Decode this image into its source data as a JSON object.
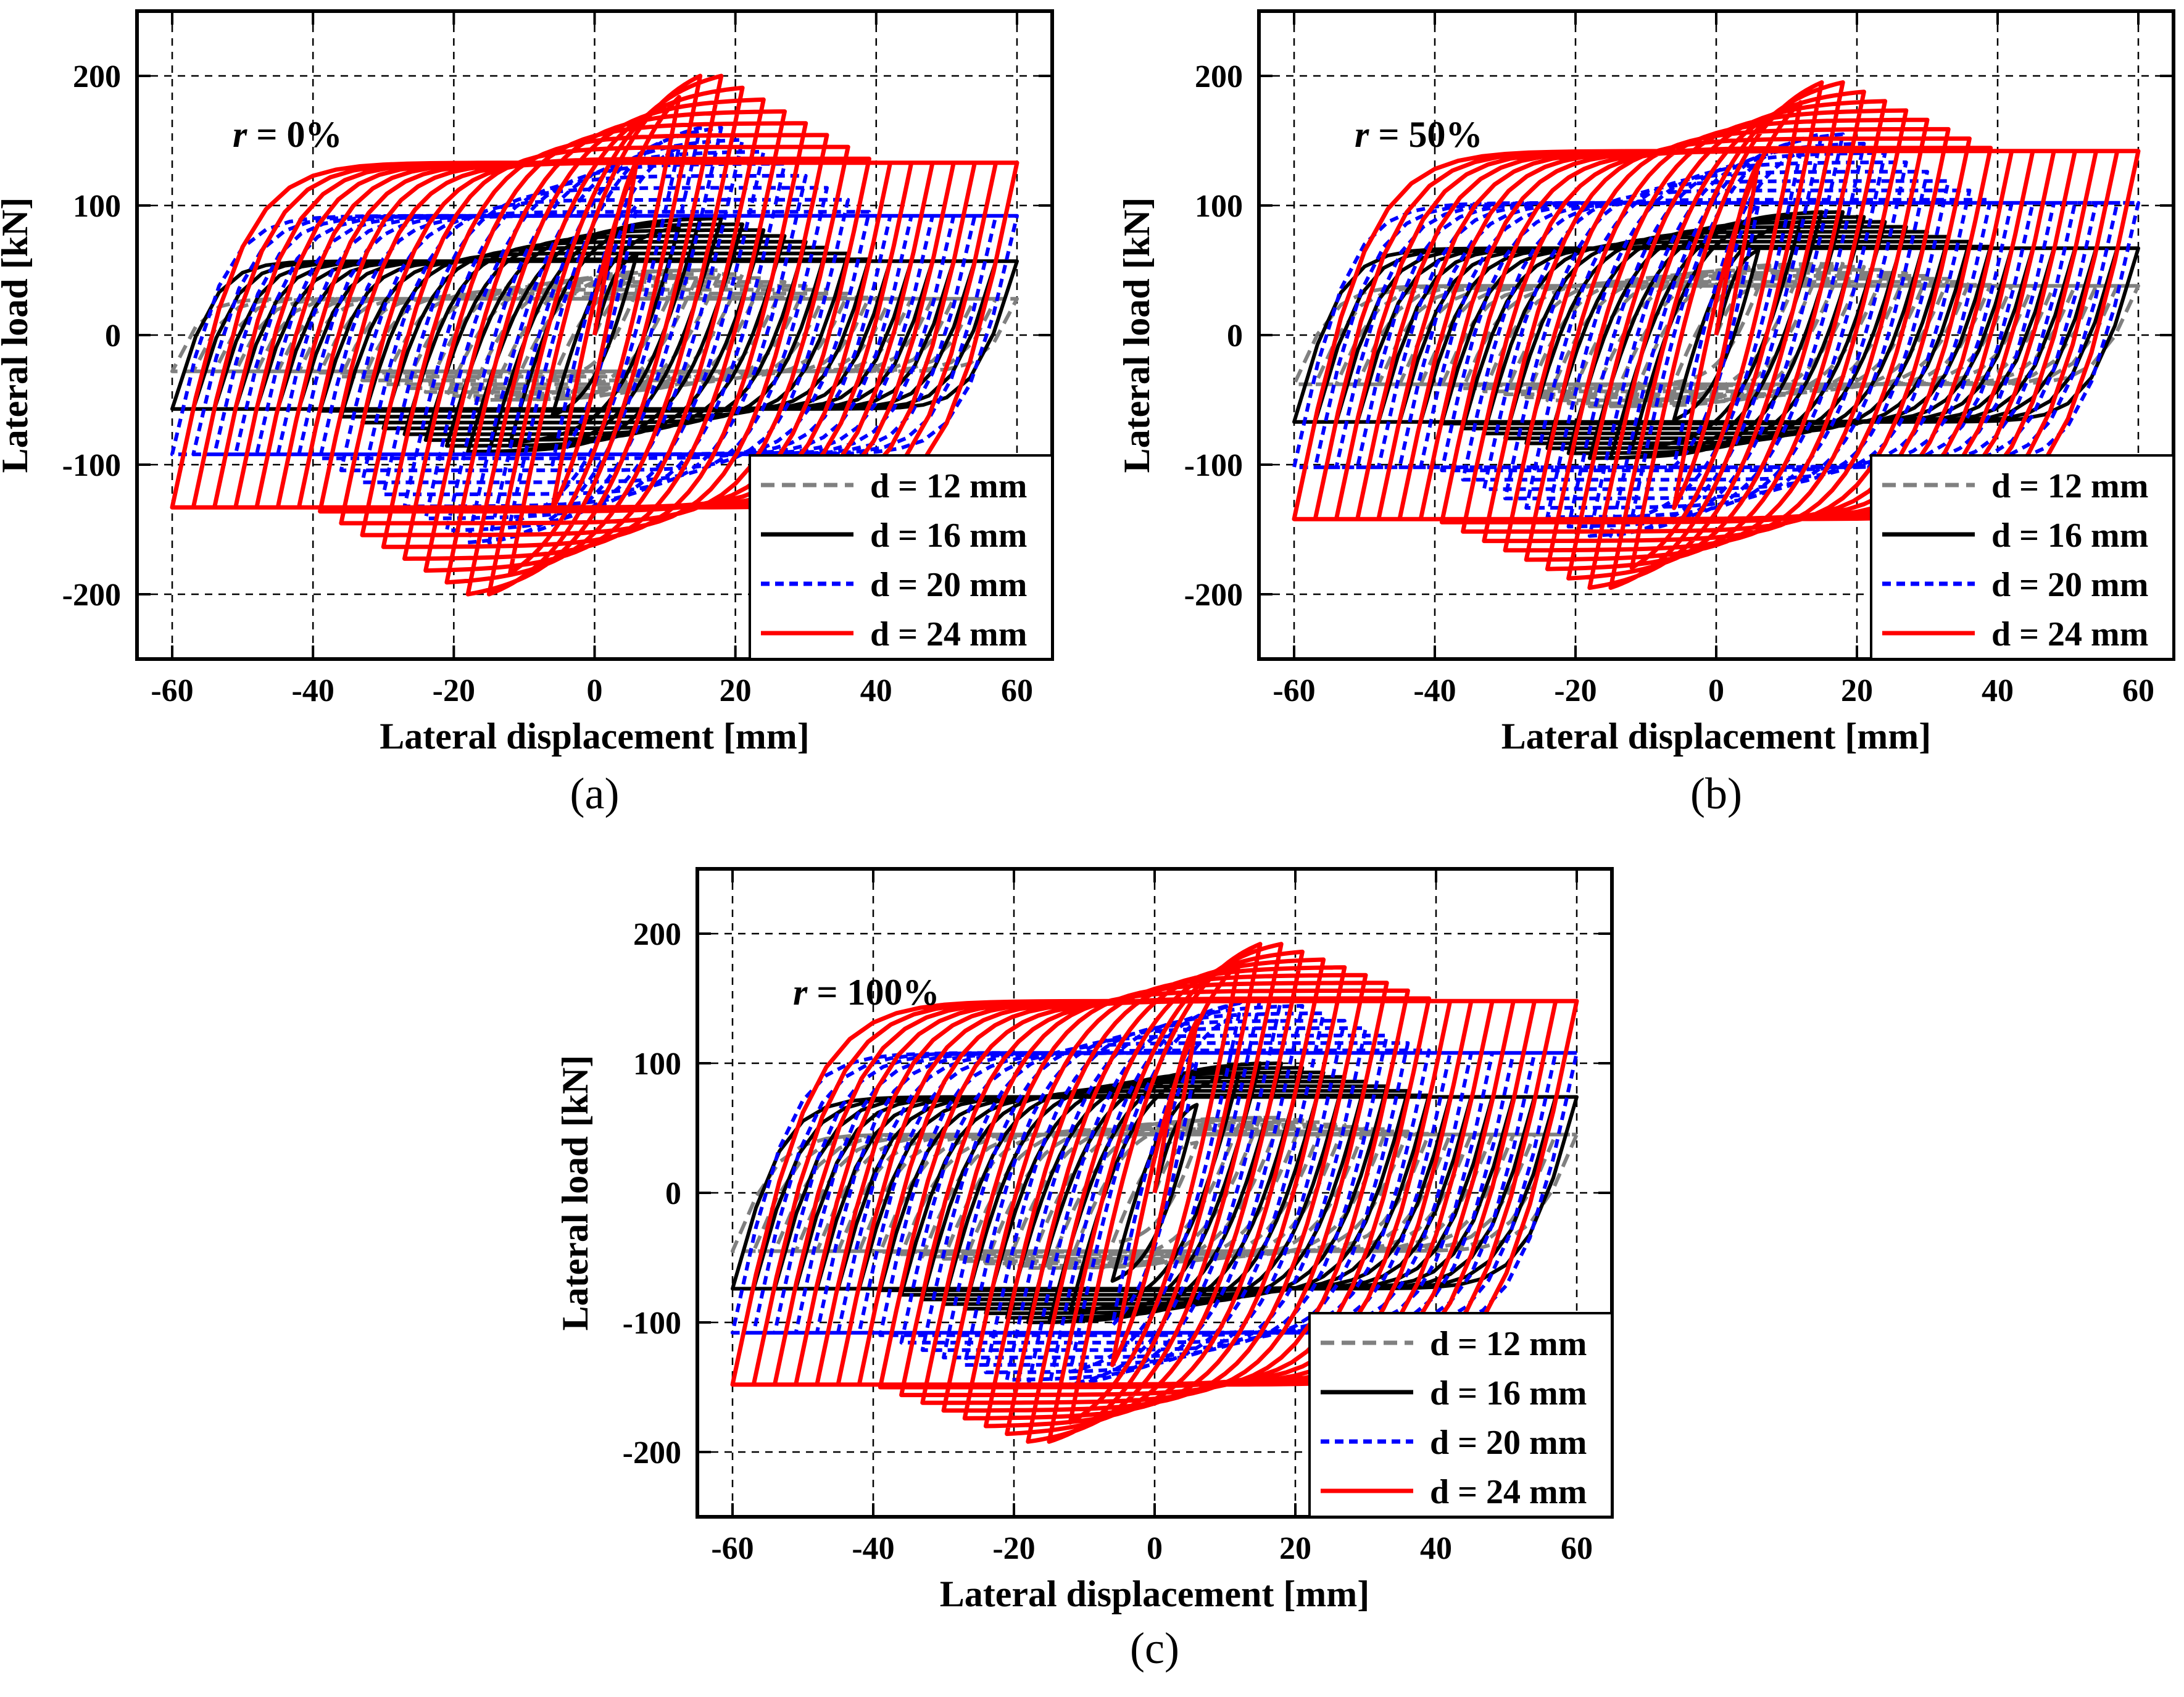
{
  "chart_data": [
    {
      "id": "a",
      "type": "line",
      "caption": "(a)",
      "annotation_var": "r",
      "annotation_value": " = 0%",
      "r_percent": 0,
      "xlabel": "Lateral displacement [mm]",
      "ylabel": "Lateral load [kN]",
      "xlim": [
        -65,
        65
      ],
      "ylim": [
        -250,
        250
      ],
      "xticks": [
        -60,
        -40,
        -20,
        0,
        20,
        40,
        60
      ],
      "yticks": [
        -200,
        -100,
        0,
        100,
        200
      ],
      "grid": true,
      "legend_position": "bottom-right",
      "series": [
        {
          "name": "d = 12 mm",
          "color": "#808080",
          "dash": "dashed",
          "peak_load": 50,
          "yield_load": 30,
          "yield_disp": 2.5,
          "end_load": 28
        },
        {
          "name": "d = 16 mm",
          "color": "#000000",
          "dash": "solid",
          "peak_load": 90,
          "yield_load": 55,
          "yield_disp": 3.0,
          "end_load": 57
        },
        {
          "name": "d = 20 mm",
          "color": "#0000ff",
          "dash": "dashed",
          "peak_load": 160,
          "yield_load": 85,
          "yield_disp": 3.5,
          "end_load": 92
        },
        {
          "name": "d = 24 mm",
          "color": "#ff0000",
          "dash": "solid",
          "peak_load": 200,
          "yield_load": 118,
          "yield_disp": 4.5,
          "end_load": 133
        }
      ]
    },
    {
      "id": "b",
      "type": "line",
      "caption": "(b)",
      "annotation_var": "r",
      "annotation_value": " = 50%",
      "r_percent": 50,
      "xlabel": "Lateral displacement [mm]",
      "ylabel": "Lateral load [kN]",
      "xlim": [
        -65,
        65
      ],
      "ylim": [
        -250,
        250
      ],
      "xticks": [
        -60,
        -40,
        -20,
        0,
        20,
        40,
        60
      ],
      "yticks": [
        -200,
        -100,
        0,
        100,
        200
      ],
      "grid": true,
      "legend_position": "bottom-right",
      "series": [
        {
          "name": "d = 12 mm",
          "color": "#808080",
          "dash": "dashed",
          "peak_load": 55,
          "yield_load": 32,
          "yield_disp": 2.5,
          "end_load": 38
        },
        {
          "name": "d = 16 mm",
          "color": "#000000",
          "dash": "solid",
          "peak_load": 95,
          "yield_load": 58,
          "yield_disp": 3.0,
          "end_load": 67
        },
        {
          "name": "d = 20 mm",
          "color": "#0000ff",
          "dash": "dashed",
          "peak_load": 155,
          "yield_load": 88,
          "yield_disp": 3.5,
          "end_load": 102
        },
        {
          "name": "d = 24 mm",
          "color": "#ff0000",
          "dash": "solid",
          "peak_load": 195,
          "yield_load": 118,
          "yield_disp": 4.5,
          "end_load": 142
        }
      ]
    },
    {
      "id": "c",
      "type": "line",
      "caption": "(c)",
      "annotation_var": "r",
      "annotation_value": " = 100%",
      "r_percent": 100,
      "xlabel": "Lateral displacement [mm]",
      "ylabel": "Lateral load [kN]",
      "xlim": [
        -65,
        65
      ],
      "ylim": [
        -250,
        250
      ],
      "xticks": [
        -60,
        -40,
        -20,
        0,
        20,
        40,
        60
      ],
      "yticks": [
        -200,
        -100,
        0,
        100,
        200
      ],
      "grid": true,
      "legend_position": "bottom-right",
      "series": [
        {
          "name": "d = 12 mm",
          "color": "#808080",
          "dash": "dashed",
          "peak_load": 58,
          "yield_load": 34,
          "yield_disp": 2.5,
          "end_load": 45
        },
        {
          "name": "d = 16 mm",
          "color": "#000000",
          "dash": "solid",
          "peak_load": 100,
          "yield_load": 60,
          "yield_disp": 3.0,
          "end_load": 74
        },
        {
          "name": "d = 20 mm",
          "color": "#0000ff",
          "dash": "dashed",
          "peak_load": 150,
          "yield_load": 90,
          "yield_disp": 3.5,
          "end_load": 108
        },
        {
          "name": "d = 24 mm",
          "color": "#ff0000",
          "dash": "solid",
          "peak_load": 192,
          "yield_load": 118,
          "yield_disp": 4.5,
          "end_load": 148
        }
      ]
    }
  ],
  "load_protocol_amplitudes_mm": [
    6,
    12,
    15,
    18,
    21,
    24,
    27,
    30,
    33,
    36,
    39,
    42,
    45,
    48,
    51,
    54,
    57,
    60
  ]
}
